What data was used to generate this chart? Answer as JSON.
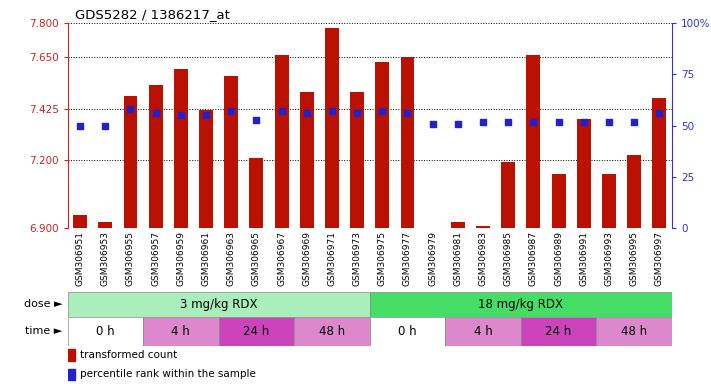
{
  "title": "GDS5282 / 1386217_at",
  "samples": [
    "GSM306951",
    "GSM306953",
    "GSM306955",
    "GSM306957",
    "GSM306959",
    "GSM306961",
    "GSM306963",
    "GSM306965",
    "GSM306967",
    "GSM306969",
    "GSM306971",
    "GSM306973",
    "GSM306975",
    "GSM306977",
    "GSM306979",
    "GSM306981",
    "GSM306983",
    "GSM306985",
    "GSM306987",
    "GSM306989",
    "GSM306991",
    "GSM306993",
    "GSM306995",
    "GSM306997"
  ],
  "transformed_count": [
    6.96,
    6.93,
    7.48,
    7.53,
    7.6,
    7.42,
    7.57,
    7.21,
    7.66,
    7.5,
    7.78,
    7.5,
    7.63,
    7.65,
    6.87,
    6.93,
    6.91,
    7.19,
    7.66,
    7.14,
    7.38,
    7.14,
    7.22,
    7.47
  ],
  "percentile_rank": [
    50,
    50,
    58,
    56,
    55,
    55,
    57,
    53,
    57,
    56,
    57,
    56,
    57,
    56,
    51,
    51,
    52,
    52,
    52,
    52,
    52,
    52,
    52,
    56
  ],
  "ylim_left": [
    6.9,
    7.8
  ],
  "ylim_right": [
    0,
    100
  ],
  "yticks_left": [
    6.9,
    7.2,
    7.425,
    7.65,
    7.8
  ],
  "yticks_right": [
    0,
    25,
    50,
    75,
    100
  ],
  "bar_color": "#bb1100",
  "dot_color": "#2222cc",
  "base_value": 6.9,
  "dose_groups": [
    {
      "label": "3 mg/kg RDX",
      "start": 0,
      "end": 12,
      "color": "#aaeebb"
    },
    {
      "label": "18 mg/kg RDX",
      "start": 12,
      "end": 24,
      "color": "#44dd66"
    }
  ],
  "time_groups": [
    {
      "label": "0 h",
      "start": 0,
      "end": 3,
      "color": "#ffffff"
    },
    {
      "label": "4 h",
      "start": 3,
      "end": 6,
      "color": "#dd88cc"
    },
    {
      "label": "24 h",
      "start": 6,
      "end": 9,
      "color": "#cc44bb"
    },
    {
      "label": "48 h",
      "start": 9,
      "end": 12,
      "color": "#dd88cc"
    },
    {
      "label": "0 h",
      "start": 12,
      "end": 15,
      "color": "#ffffff"
    },
    {
      "label": "4 h",
      "start": 15,
      "end": 18,
      "color": "#dd88cc"
    },
    {
      "label": "24 h",
      "start": 18,
      "end": 21,
      "color": "#cc44bb"
    },
    {
      "label": "48 h",
      "start": 21,
      "end": 24,
      "color": "#dd88cc"
    }
  ],
  "legend_items": [
    {
      "label": "transformed count",
      "color": "#bb1100"
    },
    {
      "label": "percentile rank within the sample",
      "color": "#2222cc"
    }
  ],
  "bg_color": "#ffffff",
  "chart_bg": "#ffffff",
  "grid_color": "#000000",
  "left_axis_color": "#cc2222",
  "right_axis_color": "#3333cc"
}
